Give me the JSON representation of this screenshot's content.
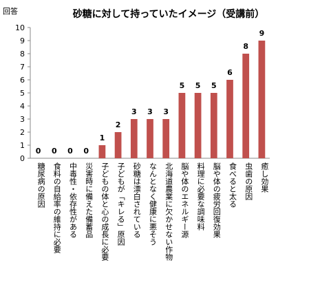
{
  "chart_data": {
    "type": "bar",
    "title": "砂糖に対して持っていたイメージ（受講前）",
    "ylabel": "回答",
    "xlabel": "",
    "ylim": [
      0,
      10
    ],
    "yticks": [
      0,
      1,
      2,
      3,
      4,
      5,
      6,
      7,
      8,
      9,
      10
    ],
    "grid": false,
    "bar_color": "#C0504D",
    "categories": [
      "糖尿病の原因",
      "食料の自給率の維持に必要",
      "中毒性・依存性がある",
      "災害時に備えた備蓄品",
      "子どもの体と心の成長に必要",
      "子どもが「キレる」原因",
      "砂糖は漂白されている",
      "なんとなく健康に悪そう",
      "北海道農業に欠かせない作物",
      "脳や体のエネルギー源",
      "料理に必要な調味料",
      "脳や体の疲労回復効果",
      "食べると太る",
      "虫歯の原因",
      "癒し効果"
    ],
    "values": [
      0,
      0,
      0,
      0,
      1,
      2,
      3,
      3,
      3,
      5,
      5,
      5,
      6,
      8,
      9
    ]
  }
}
